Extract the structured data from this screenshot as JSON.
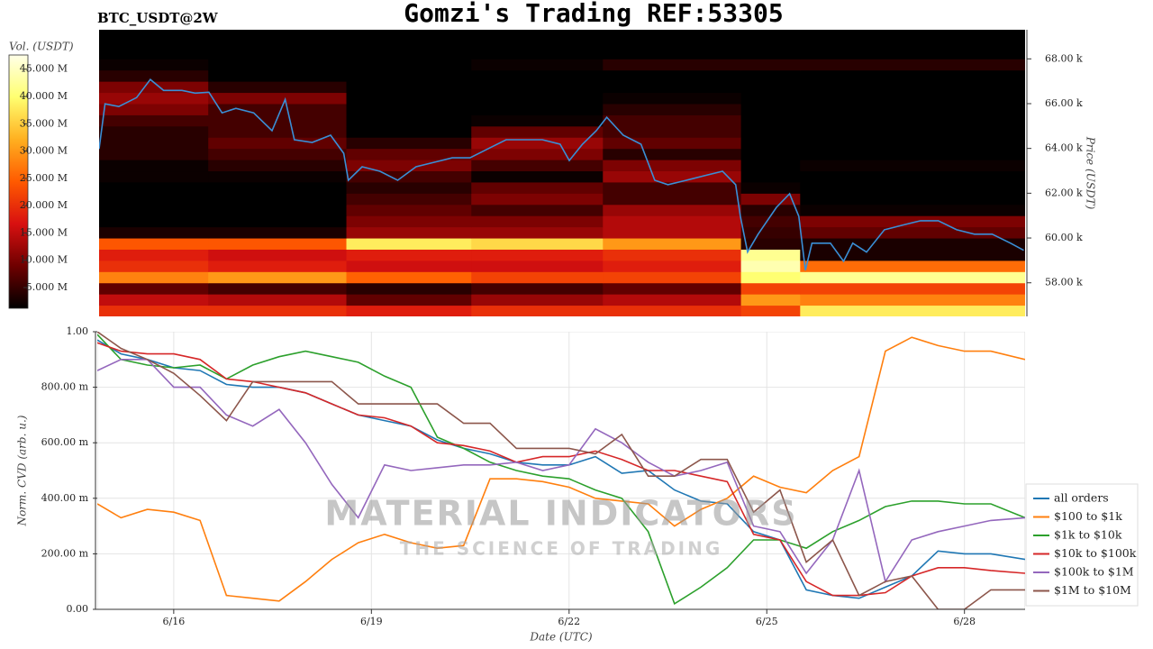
{
  "chart_data": [
    {
      "type": "heatmap",
      "title": "Gomzi's Trading REF:53305",
      "subtitle": "BTC_USDT@2W",
      "ylabel": "Price (USDT)",
      "xlim": [
        14.84,
        28.92
      ],
      "ylim": [
        56500,
        69300
      ],
      "yticks": [
        {
          "value": 58000,
          "label": "58.00 k"
        },
        {
          "value": 60000,
          "label": "60.00 k"
        },
        {
          "value": 62000,
          "label": "62.00 k"
        },
        {
          "value": 64000,
          "label": "64.00 k"
        },
        {
          "value": 66000,
          "label": "66.00 k"
        },
        {
          "value": 68000,
          "label": "68.00 k"
        }
      ],
      "x_bins": [
        14.84,
        16.5,
        18.6,
        20.5,
        22.5,
        24.6,
        25.5,
        28.92
      ],
      "y_bins": [
        56500,
        57000,
        57500,
        58000,
        58500,
        59000,
        59500,
        60000,
        60500,
        61000,
        61500,
        62000,
        62500,
        63000,
        63500,
        64000,
        64500,
        65000,
        65500,
        66000,
        66500,
        67000,
        67500,
        68000,
        68500,
        69000
      ],
      "z": [
        [
          20000000.0,
          20000000.0,
          18000000.0,
          20000000.0,
          20000000.0,
          22000000.0,
          38000000.0
        ],
        [
          15000000.0,
          14000000.0,
          8000000.0,
          12000000.0,
          14000000.0,
          30000000.0,
          28000000.0
        ],
        [
          8000000.0,
          6000000.0,
          4000000.0,
          6000000.0,
          8000000.0,
          22000000.0,
          22000000.0
        ],
        [
          28000000.0,
          30000000.0,
          25000000.0,
          22000000.0,
          22000000.0,
          40000000.0,
          42000000.0
        ],
        [
          20000000.0,
          18000000.0,
          16000000.0,
          16000000.0,
          18000000.0,
          44000000.0,
          26000000.0
        ],
        [
          18000000.0,
          16000000.0,
          18000000.0,
          18000000.0,
          20000000.0,
          42000000.0,
          3000000.0
        ],
        [
          24000000.0,
          24000000.0,
          38000000.0,
          36000000.0,
          30000000.0,
          4000000.0,
          3000000.0
        ],
        [
          3000000.0,
          3000000.0,
          12000000.0,
          12000000.0,
          14000000.0,
          5000000.0,
          8000000.0
        ],
        [
          0,
          0,
          10000000.0,
          10000000.0,
          14000000.0,
          6000000.0,
          10000000.0
        ],
        [
          0,
          0,
          8000000.0,
          6000000.0,
          12000000.0,
          4000000.0,
          2000000.0
        ],
        [
          0,
          0,
          6000000.0,
          10000000.0,
          6000000.0,
          10000000.0,
          0
        ],
        [
          0,
          0,
          4000000.0,
          8000000.0,
          6000000.0,
          2000000.0,
          0
        ],
        [
          2000000.0,
          2000000.0,
          6000000.0,
          2000000.0,
          12000000.0,
          0,
          0
        ],
        [
          2000000.0,
          4000000.0,
          10000000.0,
          6000000.0,
          10000000.0,
          0,
          2000000.0
        ],
        [
          4000000.0,
          6000000.0,
          8000000.0,
          10000000.0,
          4000000.0,
          0,
          0
        ],
        [
          4000000.0,
          8000000.0,
          4000000.0,
          12000000.0,
          8000000.0,
          0,
          0
        ],
        [
          4000000.0,
          6000000.0,
          0,
          8000000.0,
          6000000.0,
          0,
          0
        ],
        [
          6000000.0,
          6000000.0,
          0,
          2000000.0,
          6000000.0,
          0,
          0
        ],
        [
          10000000.0,
          6000000.0,
          0,
          0,
          4000000.0,
          0,
          0
        ],
        [
          12000000.0,
          10000000.0,
          0,
          0,
          2000000.0,
          0,
          0
        ],
        [
          10000000.0,
          4000000.0,
          0,
          0,
          0,
          0,
          0
        ],
        [
          4000000.0,
          0,
          0,
          0,
          0,
          0,
          0
        ],
        [
          2000000.0,
          0,
          0,
          2000000.0,
          4000000.0,
          4000000.0,
          4000000.0
        ],
        [
          0,
          0,
          0,
          0,
          0,
          0,
          0
        ],
        [
          0,
          0,
          0,
          0,
          0,
          0,
          0
        ]
      ],
      "colorscale": [
        "#000000",
        "#6e0000",
        "#d81010",
        "#ff5a00",
        "#ffb020",
        "#ffff70",
        "#ffffe8"
      ],
      "colorbar": {
        "label": "Vol. (USDT)",
        "lim": [
          1200000.0,
          47600000.0
        ],
        "ticks": [
          {
            "value": 5000000.0,
            "label": "5.000 M"
          },
          {
            "value": 10000000.0,
            "label": "10.000 M"
          },
          {
            "value": 15000000.0,
            "label": "15.000 M"
          },
          {
            "value": 20000000.0,
            "label": "20.000 M"
          },
          {
            "value": 25000000.0,
            "label": "25.000 M"
          },
          {
            "value": 30000000.0,
            "label": "30.000 M"
          },
          {
            "value": 35000000.0,
            "label": "35.000 M"
          },
          {
            "value": 40000000.0,
            "label": "40.000 M"
          },
          {
            "value": 45000000.0,
            "label": "45.000 M"
          }
        ]
      },
      "price": {
        "color": "#3a8fd6",
        "x": [
          14.84,
          14.93,
          15.14,
          15.41,
          15.62,
          15.82,
          16.1,
          16.3,
          16.51,
          16.71,
          16.92,
          17.19,
          17.47,
          17.67,
          17.81,
          18.08,
          18.36,
          18.56,
          18.63,
          18.84,
          19.11,
          19.38,
          19.66,
          19.93,
          20.21,
          20.48,
          20.75,
          21.03,
          21.3,
          21.58,
          21.85,
          21.99,
          22.19,
          22.4,
          22.56,
          22.81,
          23.08,
          23.29,
          23.49,
          23.77,
          24.04,
          24.32,
          24.52,
          24.59,
          24.7,
          24.86,
          25.14,
          25.34,
          25.48,
          25.58,
          25.68,
          25.96,
          26.16,
          26.3,
          26.51,
          26.78,
          27.05,
          27.33,
          27.6,
          27.88,
          28.15,
          28.42,
          28.7,
          28.9
        ],
        "values": [
          63980,
          65990,
          65870,
          66270,
          67080,
          66590,
          66590,
          66470,
          66510,
          65590,
          65790,
          65590,
          64790,
          66190,
          64390,
          64270,
          64590,
          63780,
          62580,
          63180,
          62980,
          62580,
          63180,
          63380,
          63580,
          63580,
          63980,
          64390,
          64390,
          64390,
          64190,
          63460,
          64190,
          64790,
          65390,
          64590,
          64190,
          62580,
          62380,
          62580,
          62780,
          62980,
          62380,
          60970,
          59370,
          60170,
          61370,
          61980,
          60970,
          58560,
          59770,
          59770,
          58960,
          59770,
          59370,
          60370,
          60570,
          60770,
          60770,
          60370,
          60170,
          60170,
          59770,
          59450
        ]
      }
    },
    {
      "type": "line",
      "xlabel": "Date (UTC)",
      "ylabel": "Norm. CVD (arb. u.)",
      "xlim": [
        14.84,
        28.92
      ],
      "ylim": [
        0,
        1
      ],
      "xticks": [
        {
          "value": 16,
          "label": "6/16"
        },
        {
          "value": 19,
          "label": "6/19"
        },
        {
          "value": 22,
          "label": "6/22"
        },
        {
          "value": 25,
          "label": "6/25"
        },
        {
          "value": 28,
          "label": "6/28"
        }
      ],
      "yticks": [
        {
          "value": 0,
          "label": "0.00"
        },
        {
          "value": 0.2,
          "label": "200.00 m"
        },
        {
          "value": 0.4,
          "label": "400.00 m"
        },
        {
          "value": 0.6,
          "label": "600.00 m"
        },
        {
          "value": 0.8,
          "label": "800.00 m"
        },
        {
          "value": 1,
          "label": "1.00"
        }
      ],
      "grid": true,
      "legend": "lower right",
      "watermark": [
        "MATERIAL INDICATORS",
        "THE SCIENCE OF TRADING"
      ],
      "x": [
        14.84,
        15.2,
        15.6,
        16.0,
        16.4,
        16.8,
        17.2,
        17.6,
        18.0,
        18.4,
        18.8,
        19.2,
        19.6,
        20.0,
        20.4,
        20.8,
        21.2,
        21.6,
        22.0,
        22.4,
        22.8,
        23.2,
        23.6,
        24.0,
        24.4,
        24.8,
        25.2,
        25.6,
        26.0,
        26.4,
        26.8,
        27.2,
        27.6,
        28.0,
        28.4,
        28.92
      ],
      "series": [
        {
          "name": "all orders",
          "color": "#1f77b4",
          "values": [
            0.97,
            0.92,
            0.9,
            0.87,
            0.86,
            0.81,
            0.8,
            0.8,
            0.78,
            0.74,
            0.7,
            0.68,
            0.66,
            0.61,
            0.58,
            0.56,
            0.53,
            0.52,
            0.52,
            0.55,
            0.49,
            0.5,
            0.43,
            0.39,
            0.38,
            0.28,
            0.25,
            0.07,
            0.05,
            0.04,
            0.08,
            0.12,
            0.21,
            0.2,
            0.2,
            0.18
          ]
        },
        {
          "name": "$100 to $1k",
          "color": "#ff7f0e",
          "values": [
            0.38,
            0.33,
            0.36,
            0.35,
            0.32,
            0.05,
            0.04,
            0.03,
            0.1,
            0.18,
            0.24,
            0.27,
            0.24,
            0.22,
            0.23,
            0.47,
            0.47,
            0.46,
            0.44,
            0.4,
            0.39,
            0.38,
            0.3,
            0.36,
            0.4,
            0.48,
            0.44,
            0.42,
            0.5,
            0.55,
            0.93,
            0.98,
            0.95,
            0.93,
            0.93,
            0.9
          ]
        },
        {
          "name": "$1k to $10k",
          "color": "#2ca02c",
          "values": [
            0.99,
            0.9,
            0.88,
            0.87,
            0.88,
            0.83,
            0.88,
            0.91,
            0.93,
            0.91,
            0.89,
            0.84,
            0.8,
            0.62,
            0.58,
            0.53,
            0.5,
            0.48,
            0.47,
            0.43,
            0.4,
            0.28,
            0.02,
            0.08,
            0.15,
            0.25,
            0.25,
            0.22,
            0.28,
            0.32,
            0.37,
            0.39,
            0.39,
            0.38,
            0.38,
            0.33
          ]
        },
        {
          "name": "$10k to $100k",
          "color": "#d62728",
          "values": [
            0.96,
            0.93,
            0.92,
            0.92,
            0.9,
            0.83,
            0.82,
            0.8,
            0.78,
            0.74,
            0.7,
            0.69,
            0.66,
            0.6,
            0.59,
            0.57,
            0.53,
            0.55,
            0.55,
            0.57,
            0.54,
            0.5,
            0.5,
            0.48,
            0.46,
            0.27,
            0.25,
            0.1,
            0.05,
            0.05,
            0.06,
            0.12,
            0.15,
            0.15,
            0.14,
            0.13
          ]
        },
        {
          "name": "$100k to $1M",
          "color": "#9467bd",
          "values": [
            0.86,
            0.9,
            0.9,
            0.8,
            0.8,
            0.7,
            0.66,
            0.72,
            0.6,
            0.45,
            0.33,
            0.52,
            0.5,
            0.51,
            0.52,
            0.52,
            0.53,
            0.5,
            0.52,
            0.65,
            0.6,
            0.53,
            0.48,
            0.5,
            0.53,
            0.3,
            0.28,
            0.13,
            0.25,
            0.5,
            0.1,
            0.25,
            0.28,
            0.3,
            0.32,
            0.33
          ]
        },
        {
          "name": "$1M to $10M",
          "color": "#8c564b",
          "values": [
            1.0,
            0.94,
            0.9,
            0.85,
            0.77,
            0.68,
            0.82,
            0.82,
            0.82,
            0.82,
            0.74,
            0.74,
            0.74,
            0.74,
            0.67,
            0.67,
            0.58,
            0.58,
            0.58,
            0.56,
            0.63,
            0.48,
            0.48,
            0.54,
            0.54,
            0.35,
            0.43,
            0.17,
            0.25,
            0.05,
            0.1,
            0.12,
            0.0,
            0.0,
            0.07,
            0.07
          ]
        }
      ]
    }
  ]
}
